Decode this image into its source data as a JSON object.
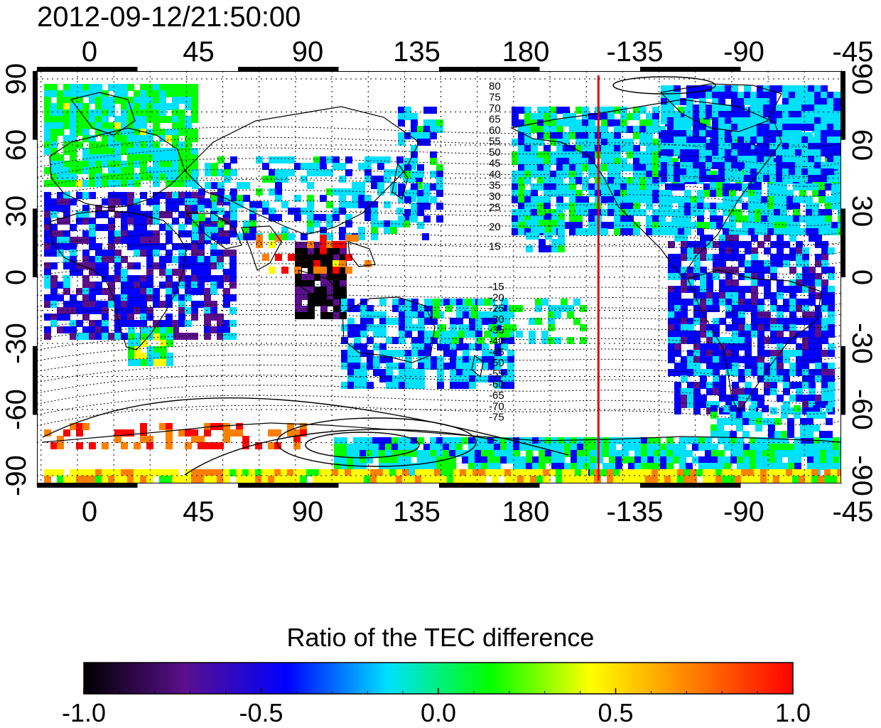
{
  "timestamp": "2012-09-12/21:50:00",
  "map": {
    "top_lon_labels": [
      "0",
      "45",
      "90",
      "135",
      "180",
      "-135",
      "-90",
      "-45"
    ],
    "bottom_lon_labels": [
      "0",
      "45",
      "90",
      "135",
      "180",
      "-135",
      "-90",
      "-45"
    ],
    "left_lat_labels": [
      "90",
      "60",
      "30",
      "0",
      "-30",
      "-60",
      "-90"
    ],
    "right_lat_labels": [
      "90",
      "60",
      "30",
      "0",
      "-30",
      "-60",
      "-90"
    ],
    "contour_labels_north": [
      "80",
      "75",
      "70",
      "65",
      "60",
      "55",
      "50",
      "45",
      "40",
      "35",
      "30",
      "25",
      "20",
      "15"
    ],
    "contour_labels_south": [
      "-15",
      "-20",
      "-25",
      "-30",
      "-35",
      "-40",
      "-45",
      "-50",
      "-55",
      "-60",
      "-65",
      "-70",
      "-75"
    ],
    "marker_line_lon": -150,
    "marker_line_color": "#e00000"
  },
  "colorbar": {
    "title": "Ratio of the TEC difference",
    "min": -1.0,
    "max": 1.0,
    "tick_labels": [
      "-1.0",
      "-0.5",
      "0.0",
      "0.5",
      "1.0"
    ],
    "colormap": [
      "#000000",
      "#5a0f8c",
      "#0000ff",
      "#00e0ff",
      "#00ff00",
      "#ffff00",
      "#ff8000",
      "#ff0000"
    ]
  }
}
